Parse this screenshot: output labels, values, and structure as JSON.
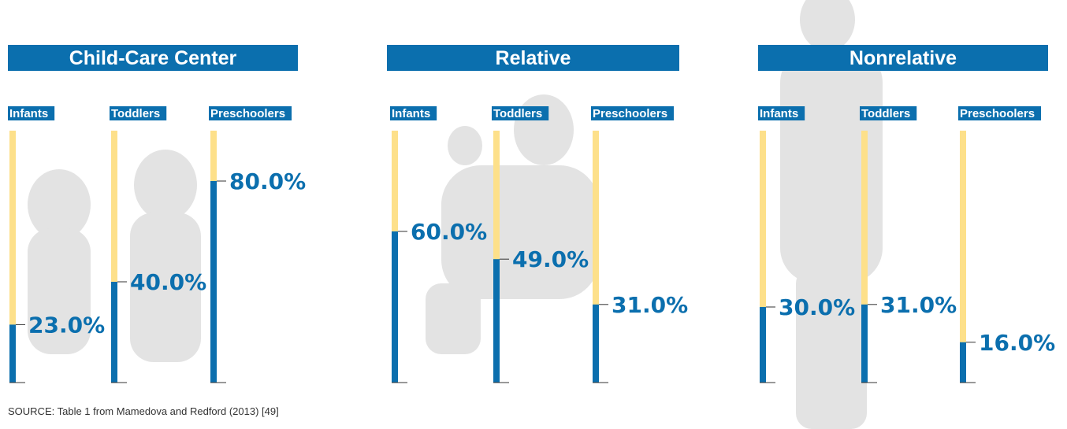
{
  "chart_data": [
    {
      "type": "bar",
      "title": "Child-Care Center",
      "categories": [
        "Infants",
        "Toddlers",
        "Preschoolers"
      ],
      "values": [
        23,
        40,
        80
      ],
      "value_labels": [
        "23.0%",
        "40.0%",
        "80.0%"
      ],
      "color": "#0b6fae",
      "track_color": "#fde08a",
      "ylim": [
        0,
        100
      ]
    },
    {
      "type": "bar",
      "title": "Relative",
      "categories": [
        "Infants",
        "Toddlers",
        "Preschoolers"
      ],
      "values": [
        60,
        49,
        31
      ],
      "value_labels": [
        "60.0%",
        "49.0%",
        "31.0%"
      ],
      "color": "#0b6fae",
      "track_color": "#fde08a",
      "ylim": [
        0,
        100
      ]
    },
    {
      "type": "bar",
      "title": "Nonrelative",
      "categories": [
        "Infants",
        "Toddlers",
        "Preschoolers"
      ],
      "values": [
        30,
        31,
        16
      ],
      "value_labels": [
        "30.0%",
        "31.0%",
        "16.0%"
      ],
      "color": "#0b6fae",
      "track_color": "#fde08a",
      "ylim": [
        0,
        100
      ]
    }
  ],
  "source": "SOURCE: Table 1 from Mamedova and Redford (2013) [49]"
}
